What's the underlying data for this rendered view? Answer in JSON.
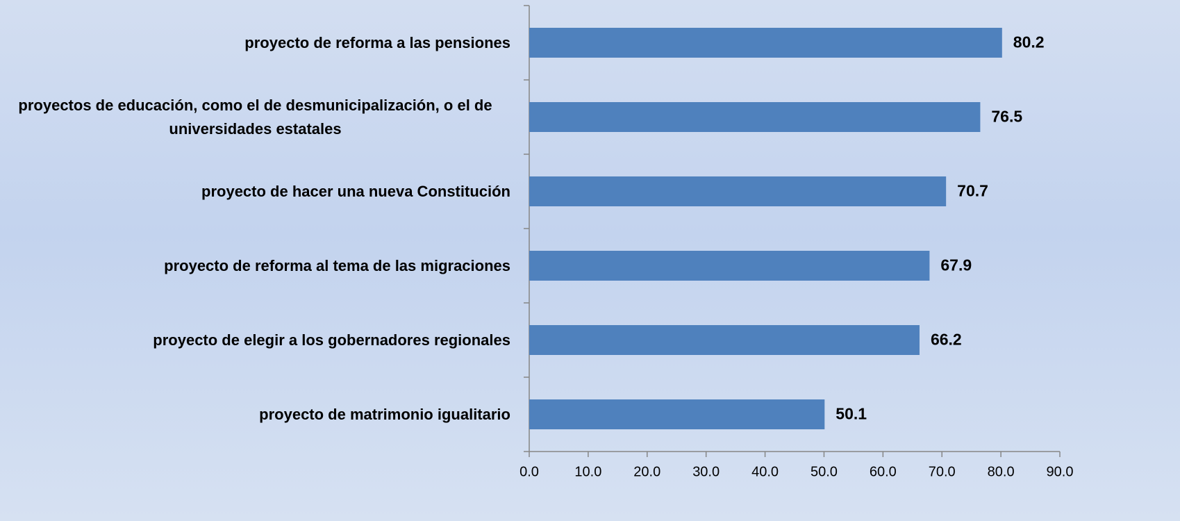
{
  "chart_data": {
    "type": "barh",
    "categories": [
      "proyecto de reforma a las pensiones",
      "proyectos de educación, como el de desmunicipalización, o el de universidades estatales",
      "proyecto de hacer una nueva Constitución",
      "proyecto de reforma al tema de las migraciones",
      "proyecto de elegir a los gobernadores regionales",
      "proyecto de matrimonio igualitario"
    ],
    "values": [
      80.2,
      76.5,
      70.7,
      67.9,
      66.2,
      50.1
    ],
    "color": "#4f81bd",
    "xlim": [
      0,
      90
    ],
    "xticks": [
      {
        "value": 0,
        "label": "0.0"
      },
      {
        "value": 10,
        "label": "10.0"
      },
      {
        "value": 20,
        "label": "20.0"
      },
      {
        "value": 30,
        "label": "30.0"
      },
      {
        "value": 40,
        "label": "40.0"
      },
      {
        "value": 50,
        "label": "50.0"
      },
      {
        "value": 60,
        "label": "60.0"
      },
      {
        "value": 70,
        "label": "70.0"
      },
      {
        "value": 80,
        "label": "80.0"
      },
      {
        "value": 90,
        "label": "90.0"
      }
    ],
    "grid": false
  }
}
